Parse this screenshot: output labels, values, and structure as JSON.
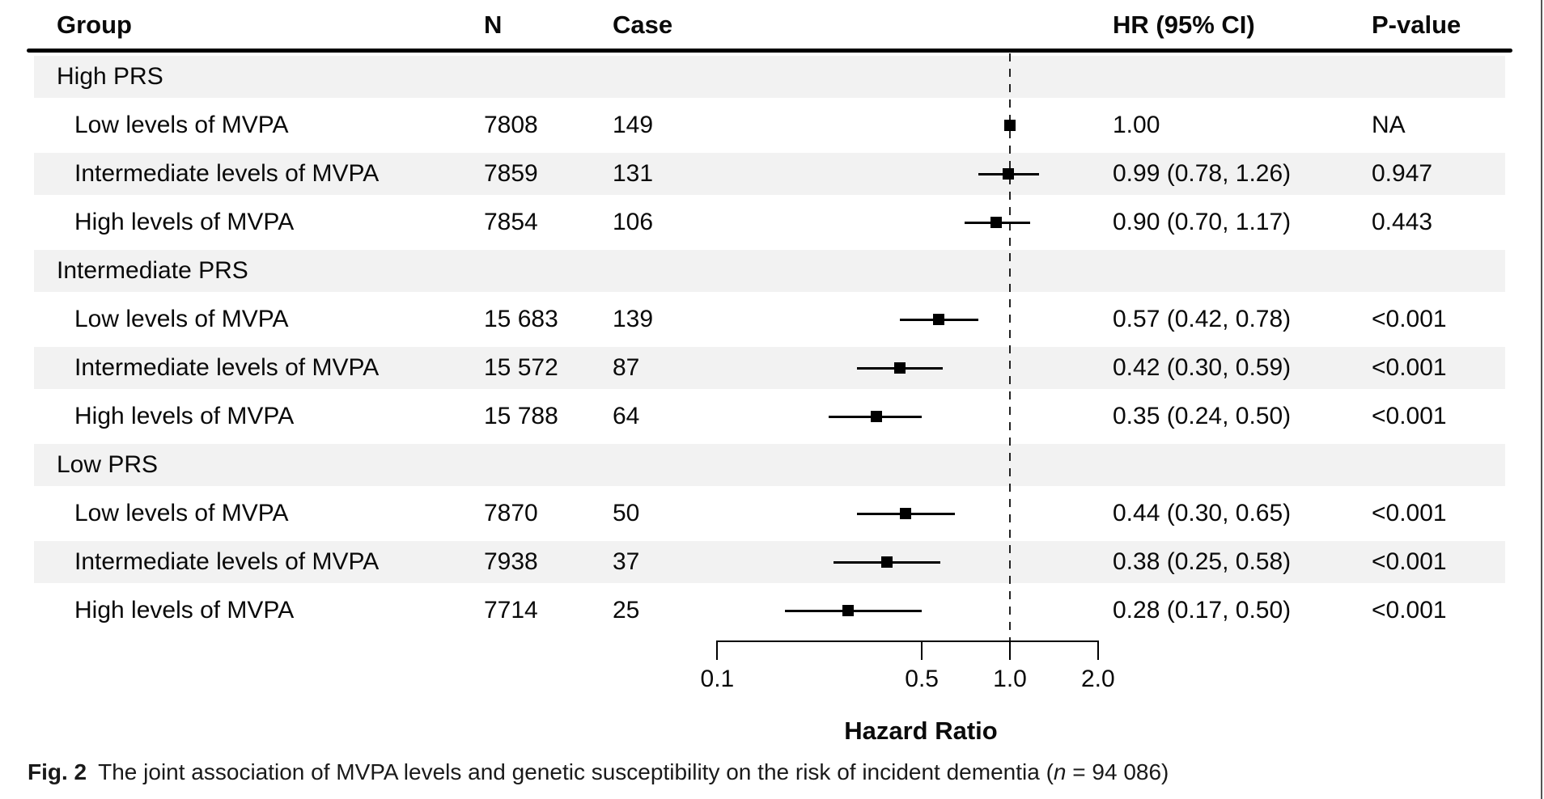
{
  "figure": {
    "caption_label": "Fig. 2",
    "caption_text": "The joint association of MVPA levels and genetic susceptibility on the risk of incident dementia (",
    "caption_n": "n",
    "caption_tail": " = 94 086)"
  },
  "table": {
    "columns": [
      "Group",
      "N",
      "Case",
      "HR (95% CI)",
      "P-value"
    ],
    "rows": [
      {
        "label": "High PRS",
        "header": true
      },
      {
        "label": "Low levels of MVPA",
        "n": "7808",
        "case": "149",
        "hr_text": "1.00",
        "p": "NA",
        "est": 1.0,
        "lo": null,
        "hi": null
      },
      {
        "label": "Intermediate levels of MVPA",
        "n": "7859",
        "case": "131",
        "hr_text": "0.99 (0.78, 1.26)",
        "p": "0.947",
        "est": 0.99,
        "lo": 0.78,
        "hi": 1.26
      },
      {
        "label": "High levels of MVPA",
        "n": "7854",
        "case": "106",
        "hr_text": "0.90 (0.70, 1.17)",
        "p": "0.443",
        "est": 0.9,
        "lo": 0.7,
        "hi": 1.17
      },
      {
        "label": "Intermediate PRS",
        "header": true
      },
      {
        "label": "Low levels of MVPA",
        "n": "15 683",
        "case": "139",
        "hr_text": "0.57 (0.42, 0.78)",
        "p": "<0.001",
        "est": 0.57,
        "lo": 0.42,
        "hi": 0.78
      },
      {
        "label": "Intermediate levels of MVPA",
        "n": "15 572",
        "case": "87",
        "hr_text": "0.42 (0.30, 0.59)",
        "p": "<0.001",
        "est": 0.42,
        "lo": 0.3,
        "hi": 0.59
      },
      {
        "label": "High levels of MVPA",
        "n": "15 788",
        "case": "64",
        "hr_text": "0.35 (0.24, 0.50)",
        "p": "<0.001",
        "est": 0.35,
        "lo": 0.24,
        "hi": 0.5
      },
      {
        "label": "Low PRS",
        "header": true
      },
      {
        "label": "Low levels of MVPA",
        "n": "7870",
        "case": "50",
        "hr_text": "0.44 (0.30, 0.65)",
        "p": "<0.001",
        "est": 0.44,
        "lo": 0.3,
        "hi": 0.65
      },
      {
        "label": "Intermediate levels of MVPA",
        "n": "7938",
        "case": "37",
        "hr_text": "0.38 (0.25, 0.58)",
        "p": "<0.001",
        "est": 0.38,
        "lo": 0.25,
        "hi": 0.58
      },
      {
        "label": "High levels of MVPA",
        "n": "7714",
        "case": "25",
        "hr_text": "0.28 (0.17, 0.50)",
        "p": "<0.001",
        "est": 0.28,
        "lo": 0.17,
        "hi": 0.5
      }
    ]
  },
  "chart_data": {
    "type": "forest",
    "xlabel": "Hazard Ratio",
    "x_scale": "log10",
    "xlim": [
      0.1,
      2.0
    ],
    "ticks": [
      0.1,
      0.5,
      1.0,
      2.0
    ],
    "tick_labels": [
      "0.1",
      "0.5",
      "1.0",
      "2.0"
    ],
    "reference_line": 1.0,
    "points": [
      {
        "group": "High PRS",
        "label": "Low levels of MVPA",
        "hr": 1.0,
        "lo": null,
        "hi": null,
        "p": "NA"
      },
      {
        "group": "High PRS",
        "label": "Intermediate levels of MVPA",
        "hr": 0.99,
        "lo": 0.78,
        "hi": 1.26,
        "p": "0.947"
      },
      {
        "group": "High PRS",
        "label": "High levels of MVPA",
        "hr": 0.9,
        "lo": 0.7,
        "hi": 1.17,
        "p": "0.443"
      },
      {
        "group": "Intermediate PRS",
        "label": "Low levels of MVPA",
        "hr": 0.57,
        "lo": 0.42,
        "hi": 0.78,
        "p": "<0.001"
      },
      {
        "group": "Intermediate PRS",
        "label": "Intermediate levels of MVPA",
        "hr": 0.42,
        "lo": 0.3,
        "hi": 0.59,
        "p": "<0.001"
      },
      {
        "group": "Intermediate PRS",
        "label": "High levels of MVPA",
        "hr": 0.35,
        "lo": 0.24,
        "hi": 0.5,
        "p": "<0.001"
      },
      {
        "group": "Low PRS",
        "label": "Low levels of MVPA",
        "hr": 0.44,
        "lo": 0.3,
        "hi": 0.65,
        "p": "<0.001"
      },
      {
        "group": "Low PRS",
        "label": "Intermediate levels of MVPA",
        "hr": 0.38,
        "lo": 0.25,
        "hi": 0.58,
        "p": "<0.001"
      },
      {
        "group": "Low PRS",
        "label": "High levels of MVPA",
        "hr": 0.28,
        "lo": 0.17,
        "hi": 0.5,
        "p": "<0.001"
      }
    ]
  },
  "colors": {
    "zebra": "#f2f2f2",
    "text": "#0a0a0a",
    "rule": "#000000",
    "marker": "#000000",
    "reference_dash": "#222222",
    "edge_line": "#555555"
  }
}
